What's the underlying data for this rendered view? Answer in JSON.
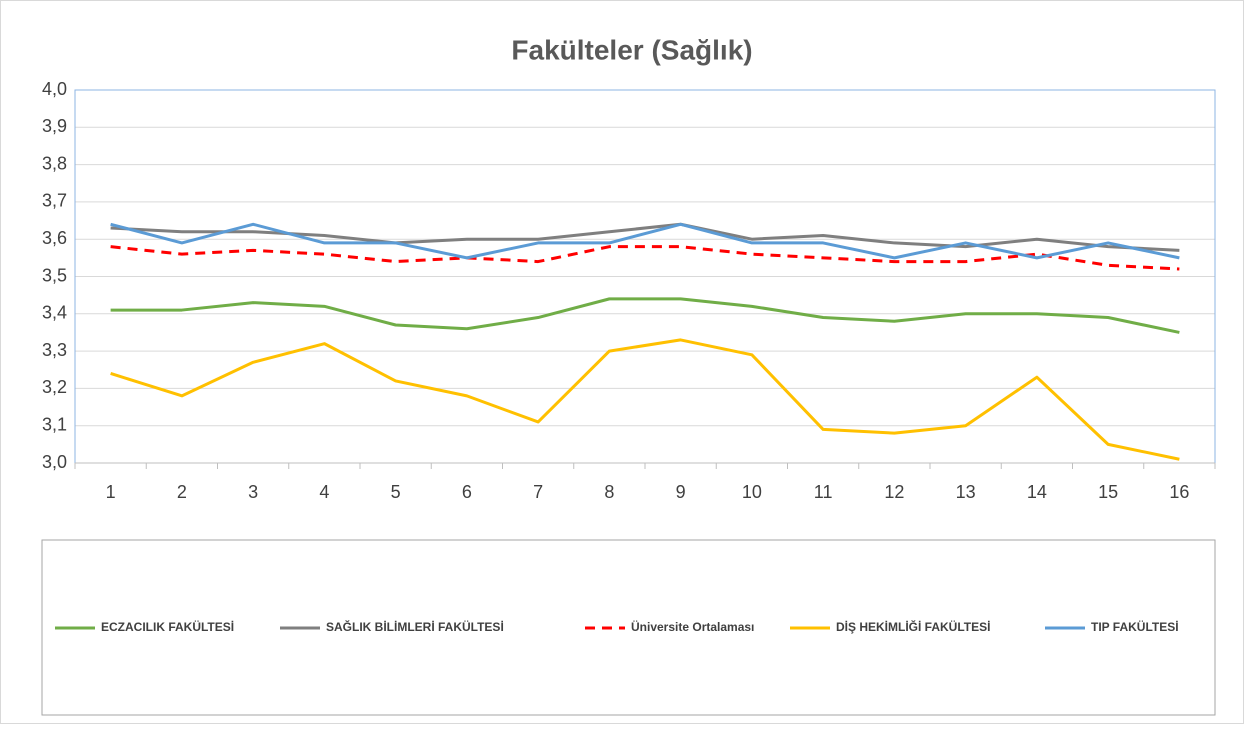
{
  "chart_data": {
    "type": "line",
    "title": "Fakülteler (Sağlık)",
    "categories": [
      "1",
      "2",
      "3",
      "4",
      "5",
      "6",
      "7",
      "8",
      "9",
      "10",
      "11",
      "12",
      "13",
      "14",
      "15",
      "16"
    ],
    "series": [
      {
        "name": "ECZACILIK FAKÜLTESİ",
        "color": "#70ad47",
        "values": [
          3.41,
          3.41,
          3.43,
          3.42,
          3.37,
          3.36,
          3.39,
          3.44,
          3.44,
          3.42,
          3.39,
          3.38,
          3.4,
          3.4,
          3.39,
          3.35
        ]
      },
      {
        "name": "SAĞLIK BİLİMLERİ FAKÜLTESİ",
        "color": "#7f7f7f",
        "values": [
          3.63,
          3.62,
          3.62,
          3.61,
          3.59,
          3.6,
          3.6,
          3.62,
          3.64,
          3.6,
          3.61,
          3.59,
          3.58,
          3.6,
          3.58,
          3.57
        ]
      },
      {
        "name": "Üniversite Ortalaması",
        "color": "#ff0000",
        "dashed": true,
        "values": [
          3.58,
          3.56,
          3.57,
          3.56,
          3.54,
          3.55,
          3.54,
          3.58,
          3.58,
          3.56,
          3.55,
          3.54,
          3.54,
          3.56,
          3.53,
          3.52
        ]
      },
      {
        "name": "DİŞ HEKİMLİĞİ FAKÜLTESİ",
        "color": "#ffc000",
        "values": [
          3.24,
          3.18,
          3.27,
          3.32,
          3.22,
          3.18,
          3.11,
          3.3,
          3.33,
          3.29,
          3.09,
          3.08,
          3.1,
          3.23,
          3.05,
          3.01
        ]
      },
      {
        "name": "TIP FAKÜLTESİ",
        "color": "#5b9bd5",
        "values": [
          3.64,
          3.59,
          3.64,
          3.59,
          3.59,
          3.55,
          3.59,
          3.59,
          3.64,
          3.59,
          3.59,
          3.55,
          3.59,
          3.55,
          3.59,
          3.55
        ]
      }
    ],
    "ylim": [
      3.0,
      4.0
    ],
    "yticks": [
      {
        "value": 3.0,
        "label": "3,0"
      },
      {
        "value": 3.1,
        "label": "3,1"
      },
      {
        "value": 3.2,
        "label": "3,2"
      },
      {
        "value": 3.3,
        "label": "3,3"
      },
      {
        "value": 3.4,
        "label": "3,4"
      },
      {
        "value": 3.5,
        "label": "3,5"
      },
      {
        "value": 3.6,
        "label": "3,6"
      },
      {
        "value": 3.7,
        "label": "3,7"
      },
      {
        "value": 3.8,
        "label": "3,8"
      },
      {
        "value": 3.9,
        "label": "3,9"
      },
      {
        "value": 4.0,
        "label": "4,0"
      }
    ],
    "grid": true,
    "legend": "bottom"
  }
}
